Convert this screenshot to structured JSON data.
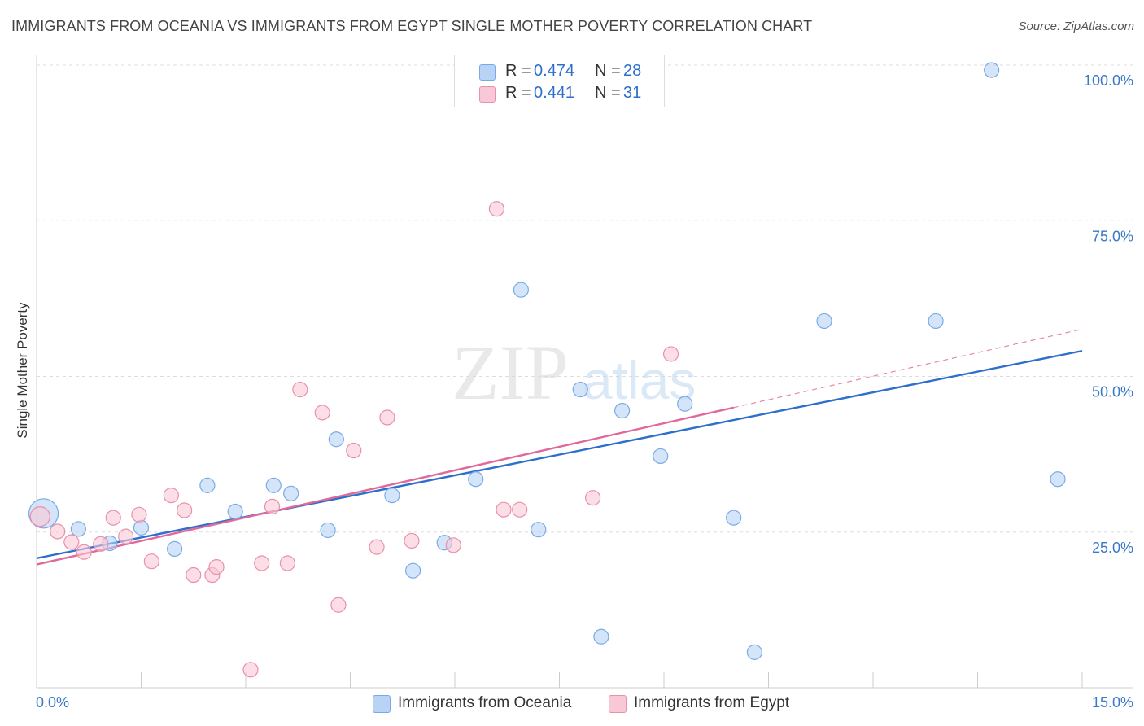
{
  "title": "IMMIGRANTS FROM OCEANIA VS IMMIGRANTS FROM EGYPT SINGLE MOTHER POVERTY CORRELATION CHART",
  "source": "Source: ZipAtlas.com",
  "watermark": {
    "zip": "ZIP",
    "atlas": "atlas"
  },
  "colors": {
    "blue_fill": "#b8d3f5",
    "blue_stroke": "#7aaae6",
    "blue_line": "#2f6fcc",
    "pink_fill": "#f8c8d6",
    "pink_stroke": "#ea8fac",
    "pink_line": "#e0699a",
    "axis_text": "#3a78c9",
    "grid": "#dddddd"
  },
  "legend": {
    "rows": [
      {
        "r_label": "R =",
        "r_value": "0.474",
        "n_label": "N =",
        "n_value": "28"
      },
      {
        "r_label": "R =",
        "r_value": "0.441",
        "n_label": "N =",
        "n_value": "31"
      }
    ]
  },
  "chart_data": {
    "type": "scatter",
    "title": "IMMIGRANTS FROM OCEANIA VS IMMIGRANTS FROM EGYPT SINGLE MOTHER POVERTY CORRELATION CHART",
    "ylabel": "Single Mother Poverty",
    "xlabel": "",
    "xlim": [
      0,
      15
    ],
    "ylim": [
      0,
      100
    ],
    "x_ticks": [
      {
        "value": 0,
        "label": "0.0%"
      },
      {
        "value": 15,
        "label": "15.0%"
      }
    ],
    "y_ticks": [
      {
        "value": 25,
        "label": "25.0%"
      },
      {
        "value": 50,
        "label": "50.0%"
      },
      {
        "value": 75,
        "label": "75.0%"
      },
      {
        "value": 100,
        "label": "100.0%"
      }
    ],
    "grid": true,
    "legend_position": "bottom",
    "series": [
      {
        "name": "Immigrants from Oceania",
        "color": "blue",
        "points": [
          [
            0.1,
            28,
            18
          ],
          [
            0.6,
            25.5,
            9
          ],
          [
            1.05,
            23.2,
            9
          ],
          [
            1.5,
            25.7,
            9
          ],
          [
            1.98,
            22.3,
            9
          ],
          [
            2.45,
            32.5,
            9
          ],
          [
            2.85,
            28.3,
            9
          ],
          [
            3.4,
            32.5,
            9
          ],
          [
            3.65,
            31.2,
            9
          ],
          [
            4.18,
            25.3,
            9
          ],
          [
            4.3,
            39.9,
            9
          ],
          [
            5.1,
            30.9,
            9
          ],
          [
            5.4,
            18.8,
            9
          ],
          [
            5.85,
            23.3,
            9
          ],
          [
            6.3,
            33.5,
            9
          ],
          [
            6.95,
            63.9,
            9
          ],
          [
            7.2,
            25.4,
            9
          ],
          [
            7.8,
            47.9,
            9
          ],
          [
            8.1,
            8.2,
            9
          ],
          [
            8.4,
            44.5,
            9
          ],
          [
            8.95,
            37.2,
            9
          ],
          [
            9.3,
            45.6,
            9
          ],
          [
            10.0,
            27.3,
            9
          ],
          [
            10.3,
            5.7,
            9
          ],
          [
            11.3,
            58.9,
            9
          ],
          [
            12.9,
            58.9,
            9
          ],
          [
            13.7,
            99.2,
            9
          ],
          [
            14.65,
            33.5,
            9
          ]
        ],
        "trend": {
          "x0": 0,
          "y0": 20.8,
          "x1": 15,
          "y1": 54.1
        }
      },
      {
        "name": "Immigrants from Egypt",
        "color": "pink",
        "points": [
          [
            0.05,
            27.5,
            12
          ],
          [
            0.3,
            25.1,
            9
          ],
          [
            0.5,
            23.4,
            9
          ],
          [
            0.68,
            21.8,
            9
          ],
          [
            0.92,
            23.1,
            9
          ],
          [
            1.1,
            27.3,
            9
          ],
          [
            1.28,
            24.3,
            9
          ],
          [
            1.47,
            27.8,
            9
          ],
          [
            1.65,
            20.3,
            9
          ],
          [
            1.93,
            30.9,
            9
          ],
          [
            2.12,
            28.5,
            9
          ],
          [
            2.25,
            18.1,
            9
          ],
          [
            2.52,
            18.1,
            9
          ],
          [
            2.58,
            19.4,
            9
          ],
          [
            3.07,
            2.9,
            9
          ],
          [
            3.23,
            20.0,
            9
          ],
          [
            3.38,
            29.1,
            9
          ],
          [
            3.6,
            20.0,
            9
          ],
          [
            3.78,
            47.9,
            9
          ],
          [
            4.1,
            44.2,
            9
          ],
          [
            4.33,
            13.3,
            9
          ],
          [
            4.55,
            38.1,
            9
          ],
          [
            4.88,
            22.6,
            9
          ],
          [
            5.03,
            43.4,
            9
          ],
          [
            5.38,
            23.6,
            9
          ],
          [
            5.98,
            22.9,
            9
          ],
          [
            6.6,
            76.9,
            9
          ],
          [
            6.7,
            28.6,
            9
          ],
          [
            6.93,
            28.6,
            9
          ],
          [
            7.98,
            30.5,
            9
          ],
          [
            9.1,
            53.6,
            9
          ]
        ],
        "trend": {
          "x0": 0,
          "y0": 19.8,
          "x1": 10.0,
          "y1": 45.0
        },
        "trend_extension": {
          "x0": 10.0,
          "y0": 45.0,
          "x1": 15,
          "y1": 57.6
        }
      }
    ]
  },
  "bottom_legend": [
    {
      "label": "Immigrants from Oceania",
      "color": "blue"
    },
    {
      "label": "Immigrants from Egypt",
      "color": "pink"
    }
  ]
}
